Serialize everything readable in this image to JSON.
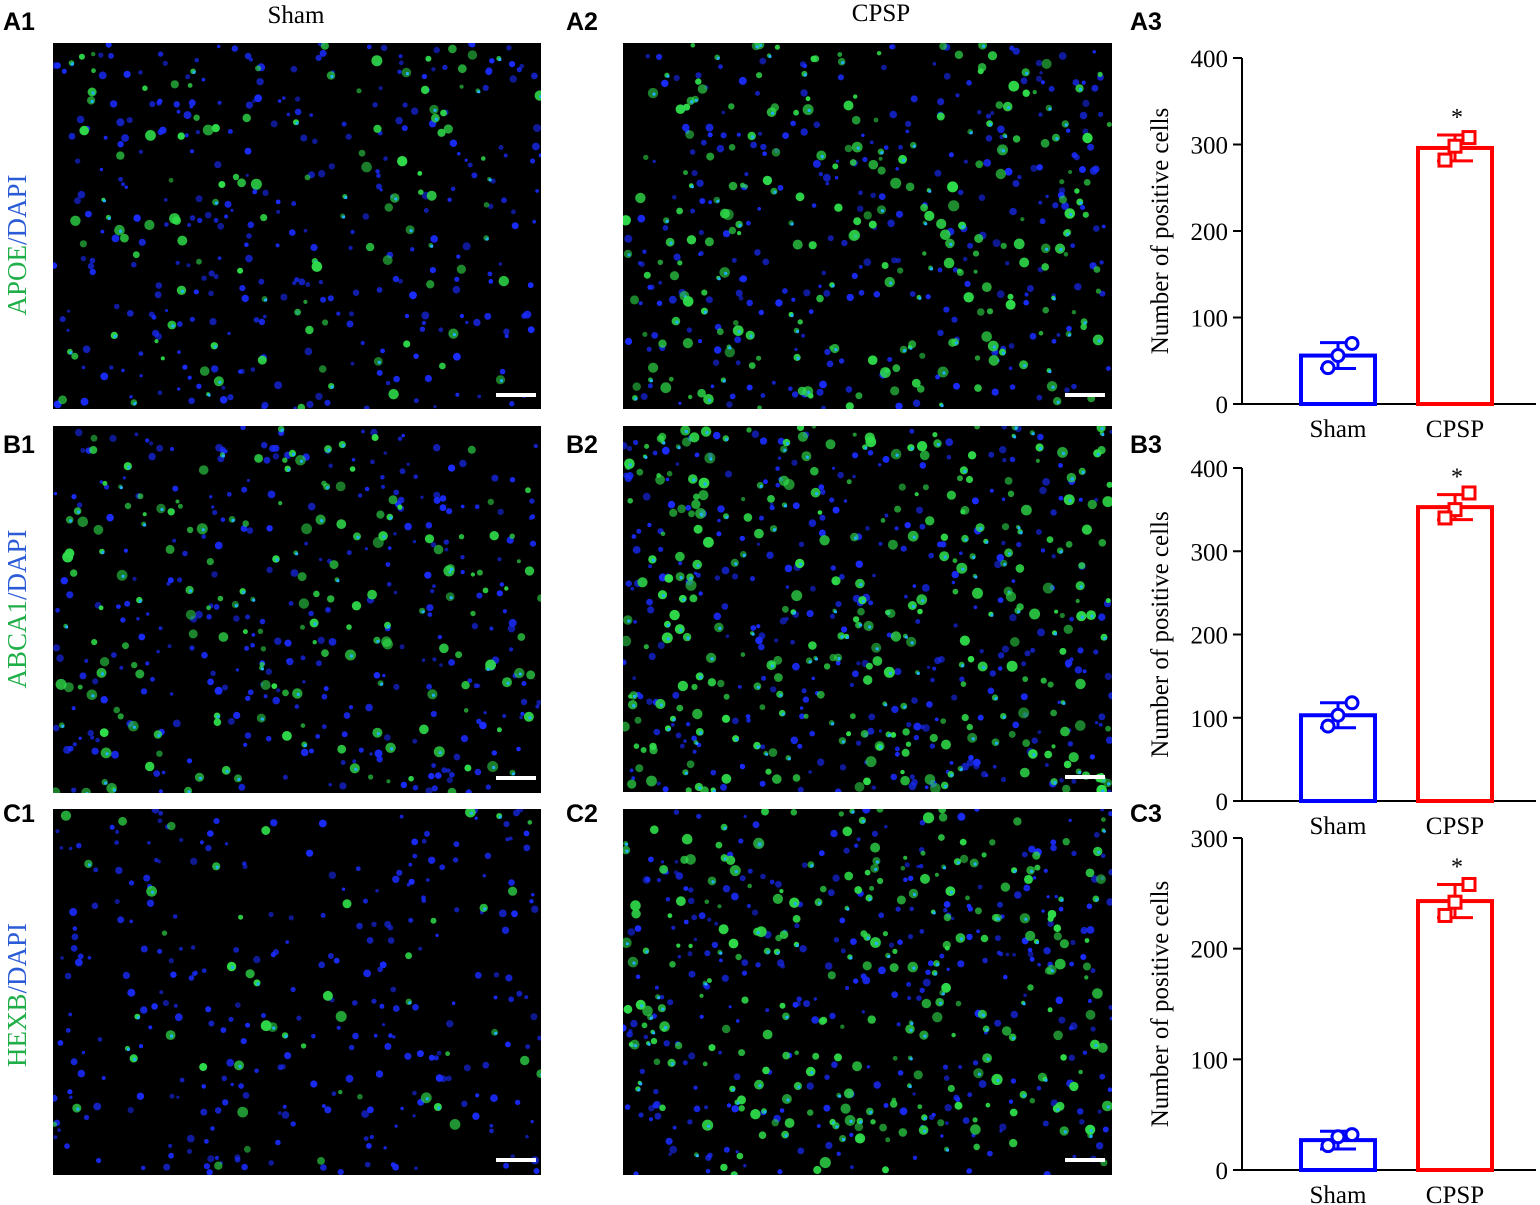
{
  "column_titles": {
    "sham": "Sham",
    "cpsp": "CPSP"
  },
  "panels": [
    {
      "row_id": "a",
      "marker": "APOE",
      "separator": "/",
      "counterstain": "DAPI",
      "labels": [
        "A1",
        "A2",
        "A3"
      ],
      "sham_density": 0.35,
      "cpsp_density": 0.75
    },
    {
      "row_id": "b",
      "marker": "ABCA1",
      "separator": "/",
      "counterstain": "DAPI",
      "labels": [
        "B1",
        "B2",
        "B3"
      ],
      "sham_density": 0.55,
      "cpsp_density": 1.0
    },
    {
      "row_id": "c",
      "marker": "HEXB",
      "separator": "/",
      "counterstain": "DAPI",
      "labels": [
        "C1",
        "C2",
        "C3"
      ],
      "sham_density": 0.15,
      "cpsp_density": 0.85
    }
  ],
  "colors": {
    "sham": "#0000ff",
    "cpsp": "#ff0000",
    "green": "#2fdc4a",
    "blue": "#1a2cff",
    "marker_text": "#1fae48",
    "dapi_text": "#2b5bd6"
  },
  "chart_data": [
    {
      "type": "bar",
      "categories": [
        "Sham",
        "CPSP"
      ],
      "ylabel": "Number of positive cells",
      "ylim": [
        0,
        400
      ],
      "yticks": [
        0,
        100,
        200,
        300,
        400
      ],
      "values": [
        56,
        296
      ],
      "errors": [
        15,
        15
      ],
      "points": [
        [
          70,
          56,
          42
        ],
        [
          308,
          298,
          282
        ]
      ],
      "significance": [
        "",
        "*"
      ]
    },
    {
      "type": "bar",
      "categories": [
        "Sham",
        "CPSP"
      ],
      "ylabel": "Number of positive cells",
      "ylim": [
        0,
        400
      ],
      "yticks": [
        0,
        100,
        200,
        300,
        400
      ],
      "values": [
        103,
        353
      ],
      "errors": [
        15,
        15
      ],
      "points": [
        [
          118,
          103,
          90
        ],
        [
          370,
          350,
          340
        ]
      ],
      "significance": [
        "",
        "*"
      ]
    },
    {
      "type": "bar",
      "categories": [
        "Sham",
        "CPSP"
      ],
      "ylabel": "Number of positive cells",
      "ylim": [
        0,
        300
      ],
      "yticks": [
        0,
        100,
        200,
        300
      ],
      "values": [
        27,
        243
      ],
      "errors": [
        8,
        15
      ],
      "points": [
        [
          32,
          30,
          22
        ],
        [
          258,
          242,
          230
        ]
      ],
      "significance": [
        "",
        "*"
      ]
    }
  ]
}
